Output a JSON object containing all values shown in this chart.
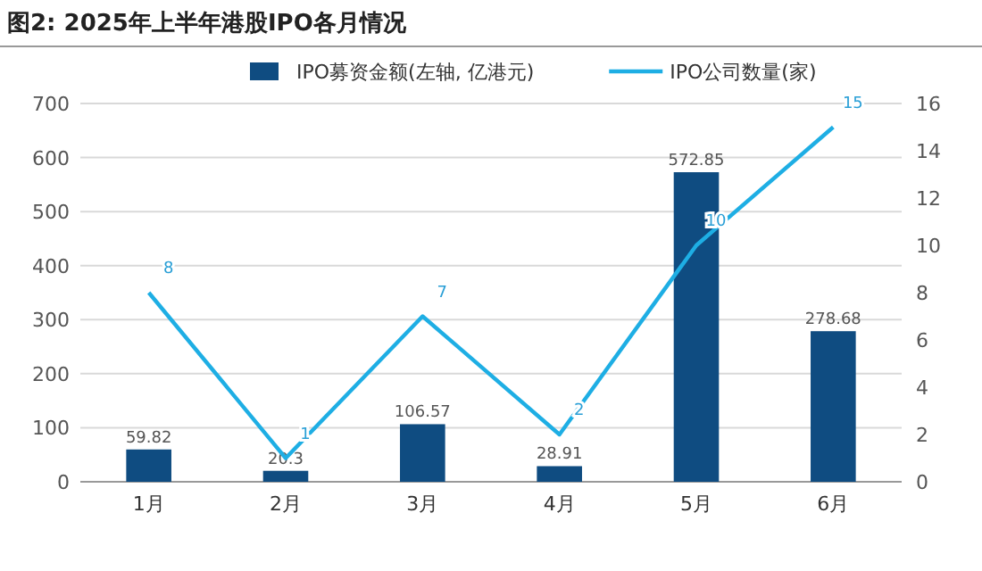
{
  "chart_data": {
    "type": "bar",
    "title": "图2: 2025年上半年港股IPO各月情况",
    "categories": [
      "1月",
      "2月",
      "3月",
      "4月",
      "5月",
      "6月"
    ],
    "series": [
      {
        "name": "IPO募资金额(左轴, 亿港元)",
        "color": "#0f4c81",
        "values": [
          59.82,
          20.3,
          106.57,
          28.91,
          572.85,
          278.68
        ]
      },
      {
        "name": "IPO公司数量(家)",
        "type": "line",
        "axis": "y2",
        "color": "#1eaee4",
        "values": [
          8,
          1,
          7,
          2,
          10,
          15
        ]
      }
    ],
    "ylim": [
      0,
      700
    ],
    "yticks": [
      0,
      100,
      200,
      300,
      400,
      500,
      600,
      700
    ],
    "y2lim": [
      0,
      16
    ],
    "y2ticks": [
      0,
      2,
      4,
      6,
      8,
      10,
      12,
      14,
      16
    ],
    "grid": "y",
    "legend": "top",
    "data_labels": true,
    "marker": "none",
    "line_style": "solid"
  }
}
